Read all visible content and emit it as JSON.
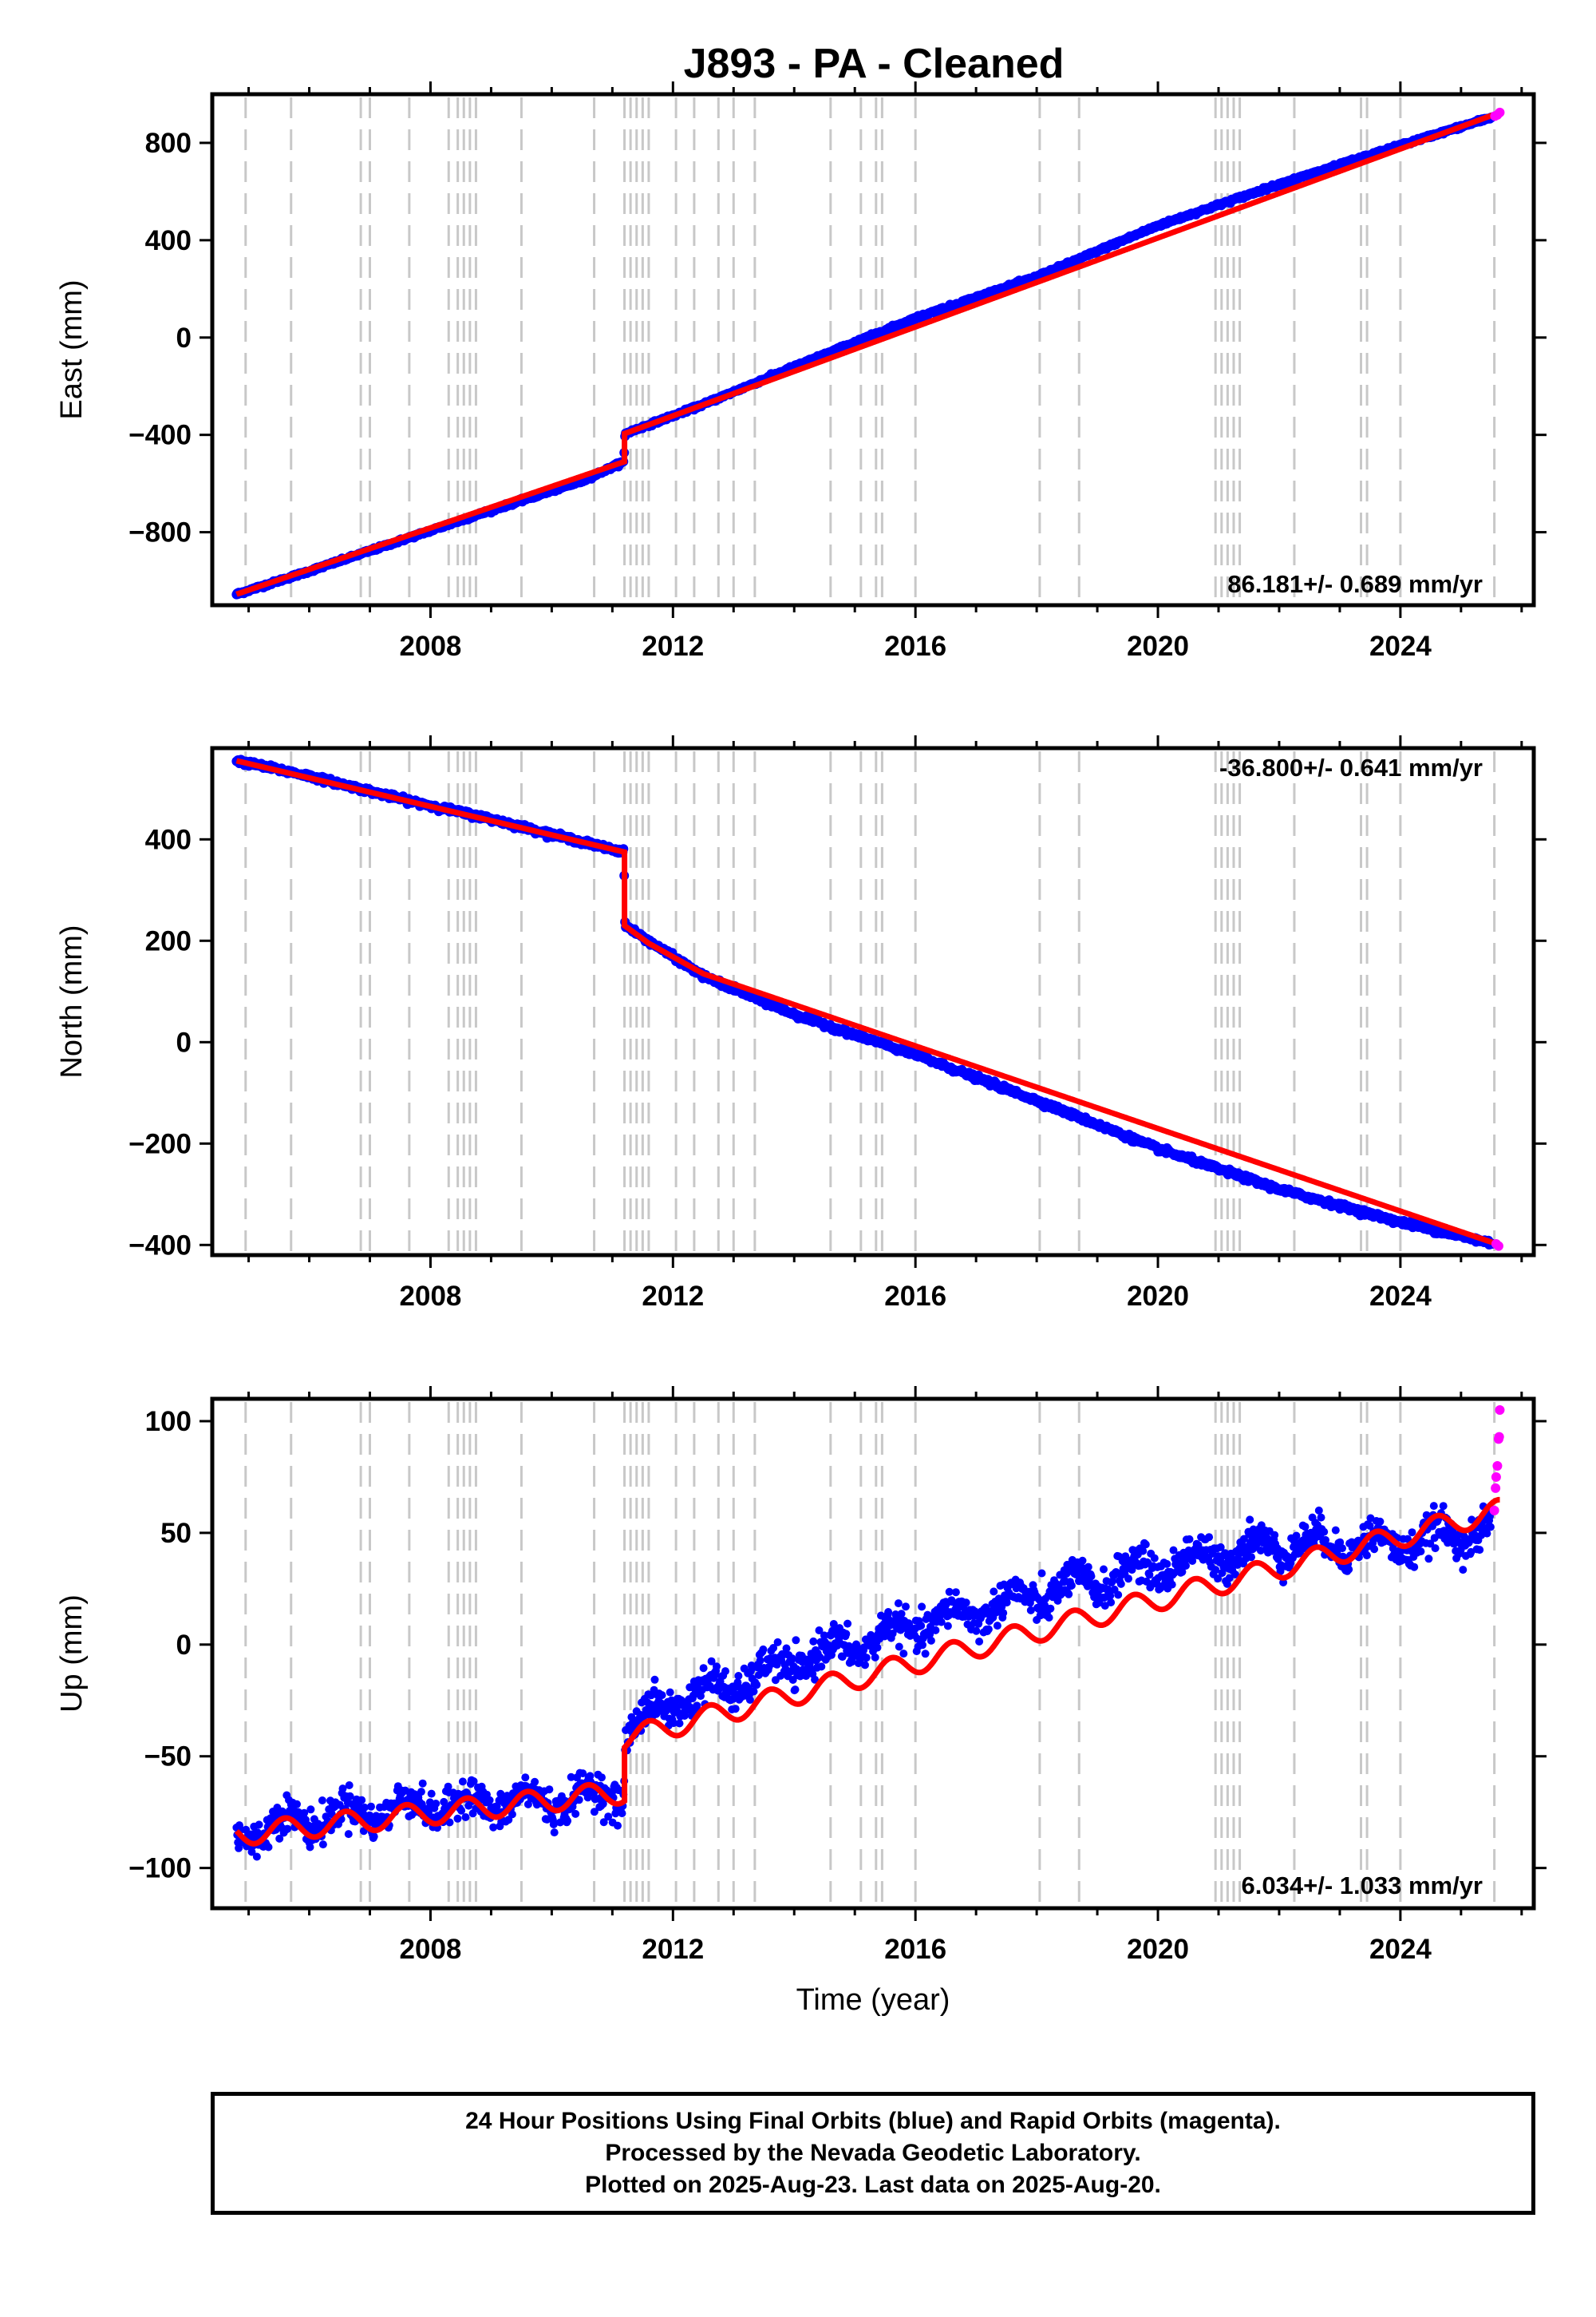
{
  "title": "J893  - PA - Cleaned",
  "xlabel": "Time (year)",
  "footer": {
    "line1": "24 Hour Positions Using Final Orbits (blue) and Rapid Orbits (magenta).",
    "line2": "Processed by the Nevada Geodetic Laboratory.",
    "line3": "Plotted on 2025-Aug-23. Last data on 2025-Aug-20."
  },
  "colors": {
    "final_orbits": "#0000ff",
    "rapid_orbits": "#ff00ff",
    "model_fit": "#ff0000",
    "event_lines": "#c8c8c8"
  },
  "chart_data": [
    {
      "type": "scatter",
      "component": "east",
      "ylabel": "East (mm)",
      "rate_label": "86.181+/- 0.689 mm/yr",
      "xlim": [
        2004.4,
        2026.2
      ],
      "ylim": [
        -1100,
        1000
      ],
      "x_ticks": [
        2008,
        2012,
        2016,
        2020,
        2024
      ],
      "y_ticks": [
        -800,
        -400,
        0,
        400,
        800
      ],
      "data_start": 2004.8,
      "data_end": 2025.64,
      "offset_epoch": 2011.2,
      "event_epochs": [
        2004.95,
        2005.7,
        2006.85,
        2007.0,
        2007.65,
        2008.3,
        2008.45,
        2008.55,
        2008.65,
        2008.75,
        2009.5,
        2010.7,
        2011.2,
        2011.3,
        2011.4,
        2011.5,
        2011.6,
        2012.05,
        2012.35,
        2012.75,
        2013.0,
        2013.35,
        2014.6,
        2015.1,
        2015.35,
        2015.45,
        2016.0,
        2018.05,
        2018.7,
        2020.95,
        2021.05,
        2021.15,
        2021.25,
        2021.35,
        2022.25,
        2023.35,
        2023.45,
        2024.0,
        2025.55
      ],
      "series": [
        {
          "name": "Final Orbits",
          "points": [
            [
              2004.8,
              -1055
            ],
            [
              2006.0,
              -960
            ],
            [
              2007.5,
              -835
            ],
            [
              2009.0,
              -710
            ],
            [
              2010.5,
              -590
            ],
            [
              2011.19,
              -510
            ],
            [
              2011.21,
              -395
            ],
            [
              2012.5,
              -275
            ],
            [
              2014.0,
              -120
            ],
            [
              2016.0,
              80
            ],
            [
              2018.0,
              250
            ],
            [
              2020.0,
              460
            ],
            [
              2022.0,
              630
            ],
            [
              2024.0,
              790
            ],
            [
              2025.5,
              905
            ]
          ]
        },
        {
          "name": "Rapid Orbits",
          "points": [
            [
              2025.56,
              910
            ],
            [
              2025.6,
              915
            ],
            [
              2025.64,
              925
            ]
          ]
        }
      ],
      "model": [
        [
          2004.8,
          -1055
        ],
        [
          2011.2,
          -510
        ],
        [
          2011.2,
          -395
        ],
        [
          2025.64,
          925
        ]
      ]
    },
    {
      "type": "scatter",
      "component": "north",
      "ylabel": "North (mm)",
      "rate_label": "-36.800+/- 0.641 mm/yr",
      "xlim": [
        2004.4,
        2026.2
      ],
      "ylim": [
        -420,
        580
      ],
      "x_ticks": [
        2008,
        2012,
        2016,
        2020,
        2024
      ],
      "y_ticks": [
        -400,
        -200,
        0,
        200,
        400
      ],
      "data_start": 2004.8,
      "data_end": 2025.64,
      "offset_epoch": 2011.2,
      "series": [
        {
          "name": "Final Orbits",
          "points": [
            [
              2004.8,
              555
            ],
            [
              2006.0,
              525
            ],
            [
              2007.5,
              480
            ],
            [
              2009.0,
              440
            ],
            [
              2010.5,
              395
            ],
            [
              2011.19,
              375
            ],
            [
              2011.21,
              230
            ],
            [
              2012.5,
              130
            ],
            [
              2014.0,
              55
            ],
            [
              2016.0,
              -25
            ],
            [
              2018.0,
              -115
            ],
            [
              2020.0,
              -210
            ],
            [
              2022.0,
              -290
            ],
            [
              2024.0,
              -355
            ],
            [
              2025.64,
              -400
            ]
          ]
        },
        {
          "name": "Rapid Orbits",
          "points": [
            [
              2025.58,
              -398
            ],
            [
              2025.62,
              -402
            ]
          ]
        }
      ],
      "model": [
        [
          2004.8,
          555
        ],
        [
          2011.2,
          375
        ],
        [
          2011.2,
          230
        ],
        [
          2011.6,
          195
        ],
        [
          2012.5,
          135
        ],
        [
          2025.64,
          -400
        ]
      ]
    },
    {
      "type": "scatter",
      "component": "up",
      "ylabel": "Up (mm)",
      "rate_label": "6.034+/- 1.033 mm/yr",
      "xlim": [
        2004.4,
        2026.2
      ],
      "ylim": [
        -118,
        110
      ],
      "x_ticks": [
        2008,
        2012,
        2016,
        2020,
        2024
      ],
      "y_ticks": [
        -100,
        -50,
        0,
        50,
        100
      ],
      "data_start": 2004.8,
      "data_end": 2025.64,
      "offset_epoch": 2011.2,
      "series": [
        {
          "name": "Final Orbits",
          "points": [
            [
              2004.8,
              -85
            ],
            [
              2006.0,
              -78
            ],
            [
              2008.0,
              -72
            ],
            [
              2010.0,
              -70
            ],
            [
              2011.19,
              -66
            ],
            [
              2011.21,
              -40
            ],
            [
              2012.0,
              -25
            ],
            [
              2013.0,
              -18
            ],
            [
              2014.0,
              -8
            ],
            [
              2016.0,
              8
            ],
            [
              2018.0,
              22
            ],
            [
              2020.0,
              35
            ],
            [
              2022.0,
              45
            ],
            [
              2024.0,
              45
            ],
            [
              2025.5,
              52
            ]
          ]
        },
        {
          "name": "Rapid Orbits",
          "points": [
            [
              2025.55,
              60
            ],
            [
              2025.57,
              70
            ],
            [
              2025.58,
              75
            ],
            [
              2025.6,
              80
            ],
            [
              2025.62,
              92
            ],
            [
              2025.63,
              93
            ],
            [
              2025.64,
              105
            ]
          ]
        }
      ],
      "model": [
        [
          2004.8,
          -85
        ],
        [
          2011.2,
          -66
        ],
        [
          2011.2,
          -42
        ],
        [
          2025.64,
          60
        ]
      ],
      "seasonal_amplitude_mm": 5
    }
  ]
}
